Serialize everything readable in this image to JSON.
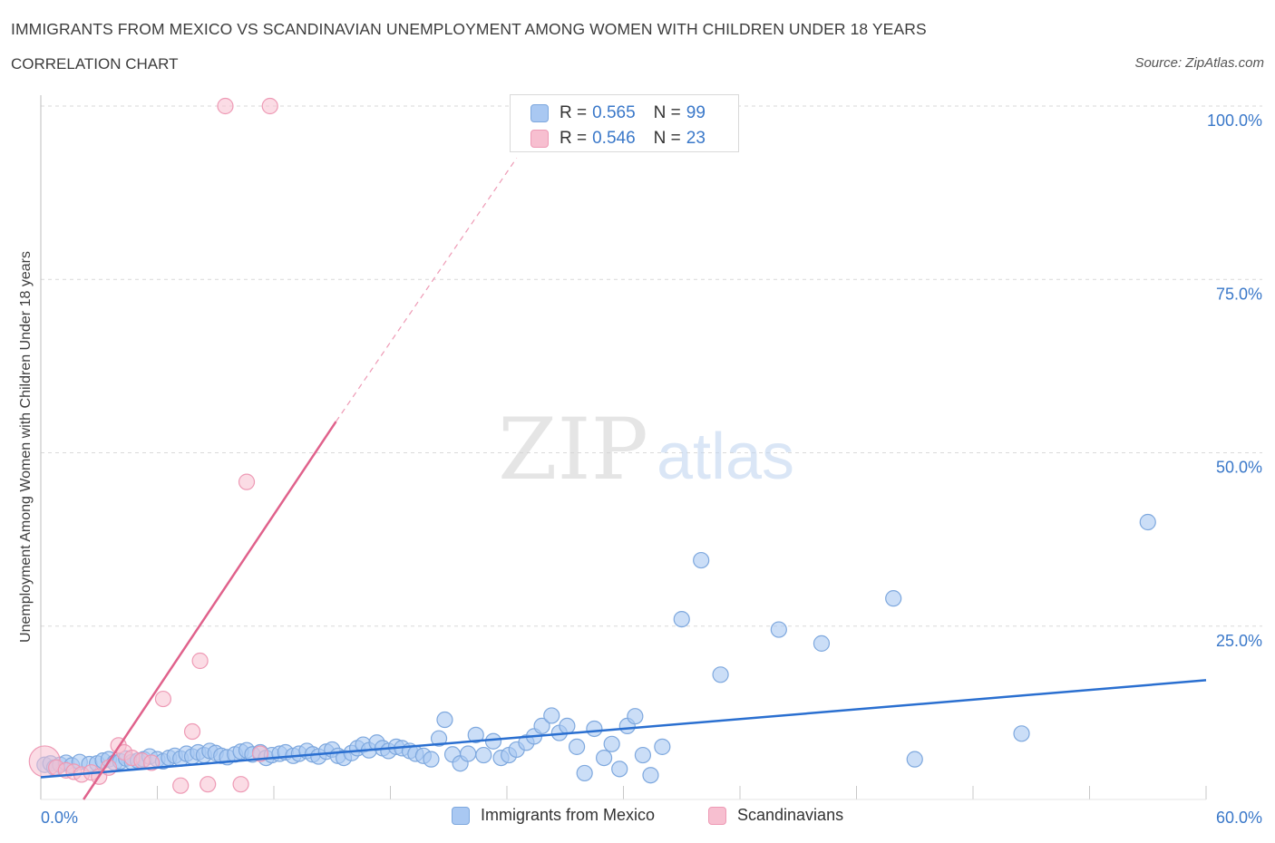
{
  "title": "IMMIGRANTS FROM MEXICO VS SCANDINAVIAN UNEMPLOYMENT AMONG WOMEN WITH CHILDREN UNDER 18 YEARS",
  "subtitle": "CORRELATION CHART",
  "source": "Source: ZipAtlas.com",
  "watermark": {
    "zip": "ZIP",
    "atlas": "atlas"
  },
  "colors": {
    "blue_fill": "#a9c8f2",
    "blue_stroke": "#7ea8de",
    "blue_line": "#2a6fd0",
    "pink_fill": "#f7bfd0",
    "pink_stroke": "#ee9ab5",
    "pink_line": "#e0628c",
    "tick_label": "#3a78c9",
    "grid": "#d9d9d9"
  },
  "stats": [
    {
      "r_label": "R =",
      "r_value": "0.565",
      "n_label": "N =",
      "n_value": "99",
      "series": "blue"
    },
    {
      "r_label": "R =",
      "r_value": "0.546",
      "n_label": "N =",
      "n_value": "23",
      "series": "pink"
    }
  ],
  "legend": [
    {
      "label": "Immigrants from Mexico",
      "series": "blue"
    },
    {
      "label": "Scandinavians",
      "series": "pink"
    }
  ],
  "chart_data": {
    "type": "scatter",
    "title": "IMMIGRANTS FROM MEXICO VS SCANDINAVIAN UNEMPLOYMENT AMONG WOMEN WITH CHILDREN UNDER 18 YEARS",
    "xlabel": "",
    "ylabel": "Unemployment Among Women with Children Under 18 years",
    "xlim": [
      0,
      60
    ],
    "ylim": [
      0,
      100
    ],
    "x_tick_labels": [
      "0.0%",
      "60.0%"
    ],
    "y_ticks": [
      25,
      50,
      75,
      100
    ],
    "y_tick_labels": [
      "25.0%",
      "50.0%",
      "75.0%",
      "100.0%"
    ],
    "grid": true,
    "legend_position": "bottom",
    "series": [
      {
        "name": "Immigrants from Mexico",
        "color": "#a9c8f2",
        "trend": {
          "x": [
            0,
            60
          ],
          "y": [
            3.2,
            17.2
          ]
        },
        "points": [
          [
            0.2,
            5.0
          ],
          [
            0.5,
            5.2
          ],
          [
            0.7,
            4.6
          ],
          [
            1.0,
            5.0
          ],
          [
            1.3,
            5.3
          ],
          [
            1.6,
            4.9
          ],
          [
            2.0,
            5.4
          ],
          [
            2.5,
            5.1
          ],
          [
            2.9,
            5.2
          ],
          [
            3.2,
            5.6
          ],
          [
            3.5,
            5.8
          ],
          [
            3.8,
            5.3
          ],
          [
            4.1,
            5.5
          ],
          [
            4.4,
            5.9
          ],
          [
            4.7,
            5.4
          ],
          [
            5.0,
            5.6
          ],
          [
            5.3,
            5.8
          ],
          [
            5.6,
            6.2
          ],
          [
            6.0,
            5.8
          ],
          [
            6.3,
            5.5
          ],
          [
            6.6,
            6.0
          ],
          [
            6.9,
            6.3
          ],
          [
            7.2,
            5.9
          ],
          [
            7.5,
            6.6
          ],
          [
            7.8,
            6.2
          ],
          [
            8.1,
            6.8
          ],
          [
            8.4,
            6.4
          ],
          [
            8.7,
            7.0
          ],
          [
            9.0,
            6.7
          ],
          [
            9.3,
            6.3
          ],
          [
            9.6,
            6.1
          ],
          [
            10.0,
            6.5
          ],
          [
            10.3,
            6.9
          ],
          [
            10.6,
            7.1
          ],
          [
            10.9,
            6.5
          ],
          [
            11.3,
            6.8
          ],
          [
            11.6,
            6.0
          ],
          [
            11.9,
            6.4
          ],
          [
            12.3,
            6.6
          ],
          [
            12.6,
            6.8
          ],
          [
            13.0,
            6.3
          ],
          [
            13.3,
            6.6
          ],
          [
            13.7,
            7.0
          ],
          [
            14.0,
            6.5
          ],
          [
            14.3,
            6.2
          ],
          [
            14.7,
            6.9
          ],
          [
            15.0,
            7.2
          ],
          [
            15.3,
            6.3
          ],
          [
            15.6,
            6.0
          ],
          [
            16.0,
            6.7
          ],
          [
            16.3,
            7.4
          ],
          [
            16.6,
            7.9
          ],
          [
            16.9,
            7.1
          ],
          [
            17.3,
            8.2
          ],
          [
            17.6,
            7.4
          ],
          [
            17.9,
            7.0
          ],
          [
            18.3,
            7.6
          ],
          [
            18.6,
            7.4
          ],
          [
            19.0,
            7.0
          ],
          [
            19.3,
            6.6
          ],
          [
            19.7,
            6.3
          ],
          [
            20.1,
            5.8
          ],
          [
            20.5,
            8.8
          ],
          [
            20.8,
            11.5
          ],
          [
            21.2,
            6.5
          ],
          [
            21.6,
            5.2
          ],
          [
            22.0,
            6.6
          ],
          [
            22.4,
            9.3
          ],
          [
            22.8,
            6.4
          ],
          [
            23.3,
            8.4
          ],
          [
            23.7,
            6.0
          ],
          [
            24.1,
            6.4
          ],
          [
            24.5,
            7.2
          ],
          [
            25.0,
            8.2
          ],
          [
            25.4,
            9.1
          ],
          [
            25.8,
            10.6
          ],
          [
            26.3,
            12.1
          ],
          [
            26.7,
            9.6
          ],
          [
            27.1,
            10.6
          ],
          [
            27.6,
            7.6
          ],
          [
            28.0,
            3.8
          ],
          [
            28.5,
            10.2
          ],
          [
            29.0,
            6.0
          ],
          [
            29.4,
            8.0
          ],
          [
            29.8,
            4.4
          ],
          [
            30.2,
            10.6
          ],
          [
            30.6,
            12.0
          ],
          [
            31.0,
            6.4
          ],
          [
            31.4,
            3.5
          ],
          [
            32.0,
            7.6
          ],
          [
            33.0,
            26.0
          ],
          [
            34.0,
            34.5
          ],
          [
            35.0,
            18.0
          ],
          [
            38.0,
            24.5
          ],
          [
            40.2,
            22.5
          ],
          [
            43.9,
            29.0
          ],
          [
            45.0,
            5.8
          ],
          [
            50.5,
            9.5
          ],
          [
            57.0,
            40.0
          ]
        ]
      },
      {
        "name": "Scandinavians",
        "color": "#f7bfd0",
        "trend": {
          "x": [
            2.2,
            15.2
          ],
          "y": [
            0,
            54.5
          ]
        },
        "trend_dashed": {
          "x": [
            15.2,
            24.5
          ],
          "y": [
            54.5,
            92.5
          ]
        },
        "points": [
          [
            0.2,
            5.5
          ],
          [
            0.8,
            4.6
          ],
          [
            1.3,
            4.2
          ],
          [
            1.7,
            4.0
          ],
          [
            2.1,
            3.6
          ],
          [
            2.6,
            3.9
          ],
          [
            3.0,
            3.3
          ],
          [
            3.5,
            4.6
          ],
          [
            4.0,
            7.8
          ],
          [
            4.3,
            6.8
          ],
          [
            4.7,
            6.0
          ],
          [
            5.2,
            5.6
          ],
          [
            5.7,
            5.3
          ],
          [
            6.3,
            14.5
          ],
          [
            7.2,
            2.0
          ],
          [
            7.8,
            9.8
          ],
          [
            8.2,
            20.0
          ],
          [
            8.6,
            2.2
          ],
          [
            9.5,
            100.0
          ],
          [
            10.3,
            2.2
          ],
          [
            10.6,
            45.8
          ],
          [
            11.8,
            100.0
          ],
          [
            11.3,
            6.6
          ]
        ]
      }
    ]
  }
}
